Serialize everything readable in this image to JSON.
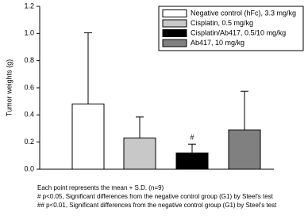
{
  "chart_data": {
    "type": "bar",
    "y_label": "Tumor weights (g)",
    "ylim": [
      0,
      1.2
    ],
    "yticks": [
      {
        "value": 0,
        "label": "0.0"
      },
      0.2,
      0.4,
      0.6,
      0.8,
      {
        "value": 1,
        "label": "1.0"
      },
      1.2
    ],
    "series": [
      {
        "name": "Negative control (hFc), 3.3 mg/kg",
        "color": "#ffffff",
        "values": [
          0.48
        ],
        "errors": [
          0.525
        ]
      },
      {
        "name": "Cisplatin, 0.5 mg/kg",
        "color": "#c8c8c8",
        "values": [
          0.23
        ],
        "errors": [
          0.155
        ]
      },
      {
        "name": "Cisplatin/Ab417, 0.5/10 mg/kg",
        "color": "#000000",
        "values": [
          0.12
        ],
        "errors": [
          0.065
        ],
        "annotation": "#"
      },
      {
        "name": "Ab417, 10 mg/kg",
        "color": "#808080",
        "values": [
          0.29
        ],
        "errors": [
          0.285
        ]
      }
    ],
    "notes": [
      "Each point represents the mean + S.D. (n=9)",
      "# p<0.05, Significant differences from the negative control group (G1) by Steel's test",
      "## p<0.01, Significant differences from the negative control group (G1) by Steel's test"
    ]
  }
}
